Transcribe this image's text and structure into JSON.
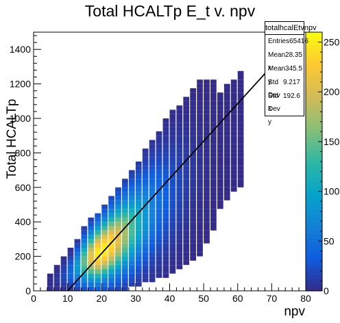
{
  "chart_data": {
    "type": "heatmap",
    "title": "Total HCALTp E_t v. npv",
    "xlabel": "npv",
    "ylabel": "Total HCALTp",
    "xlim": [
      0,
      80
    ],
    "ylim": [
      0,
      1500
    ],
    "x_ticks": [
      "0",
      "10",
      "20",
      "30",
      "40",
      "50",
      "60",
      "70",
      "80"
    ],
    "y_ticks": [
      "0",
      "200",
      "400",
      "600",
      "800",
      "1000",
      "1200",
      "1400"
    ],
    "z_range": [
      0,
      260
    ],
    "colorbar_ticks": [
      "0",
      "50",
      "100",
      "150",
      "200",
      "250"
    ],
    "colorbar_palette": [
      "#352a87",
      "#0f5cdd",
      "#1481d6",
      "#06a4ca",
      "#2eb7a4",
      "#87bf77",
      "#d1bb59",
      "#fec832",
      "#f9fb0e"
    ],
    "grid": false,
    "fit_line": {
      "x": [
        10,
        80
      ],
      "y": [
        0,
        1520
      ],
      "color": "#000000"
    },
    "bins": {
      "x_centers": [
        5,
        7,
        9,
        11,
        13,
        15,
        17,
        19,
        21,
        23,
        25,
        27,
        29,
        31,
        33,
        35,
        37,
        39,
        41,
        43,
        45,
        47,
        49,
        51,
        53,
        55,
        57,
        59,
        61
      ],
      "y_mean": [
        40,
        70,
        90,
        110,
        140,
        170,
        195,
        215,
        240,
        270,
        300,
        330,
        360,
        395,
        430,
        470,
        505,
        540,
        575,
        610,
        645,
        680,
        715,
        750,
        785,
        820,
        860,
        900,
        940
      ],
      "y_spread": [
        25,
        35,
        45,
        55,
        70,
        85,
        95,
        105,
        110,
        120,
        130,
        140,
        150,
        160,
        170,
        180,
        190,
        200,
        205,
        210,
        215,
        220,
        225,
        230,
        230,
        230,
        230,
        230,
        230
      ],
      "peak_counts": [
        3,
        8,
        20,
        45,
        90,
        150,
        210,
        250,
        255,
        240,
        210,
        175,
        140,
        110,
        85,
        65,
        48,
        35,
        25,
        18,
        12,
        8,
        5,
        3,
        2,
        1,
        1,
        1,
        1
      ]
    },
    "stats": {
      "name": "totalhcalEtvnpv",
      "rows": [
        {
          "label": "Entries",
          "value": "65416"
        },
        {
          "label": "Mean x",
          "value": "28.35"
        },
        {
          "label": "Mean y",
          "value": "345.5"
        },
        {
          "label": "Std Dev x",
          "value": "9.217"
        },
        {
          "label": "Std Dev y",
          "value": "192.6"
        }
      ]
    }
  }
}
